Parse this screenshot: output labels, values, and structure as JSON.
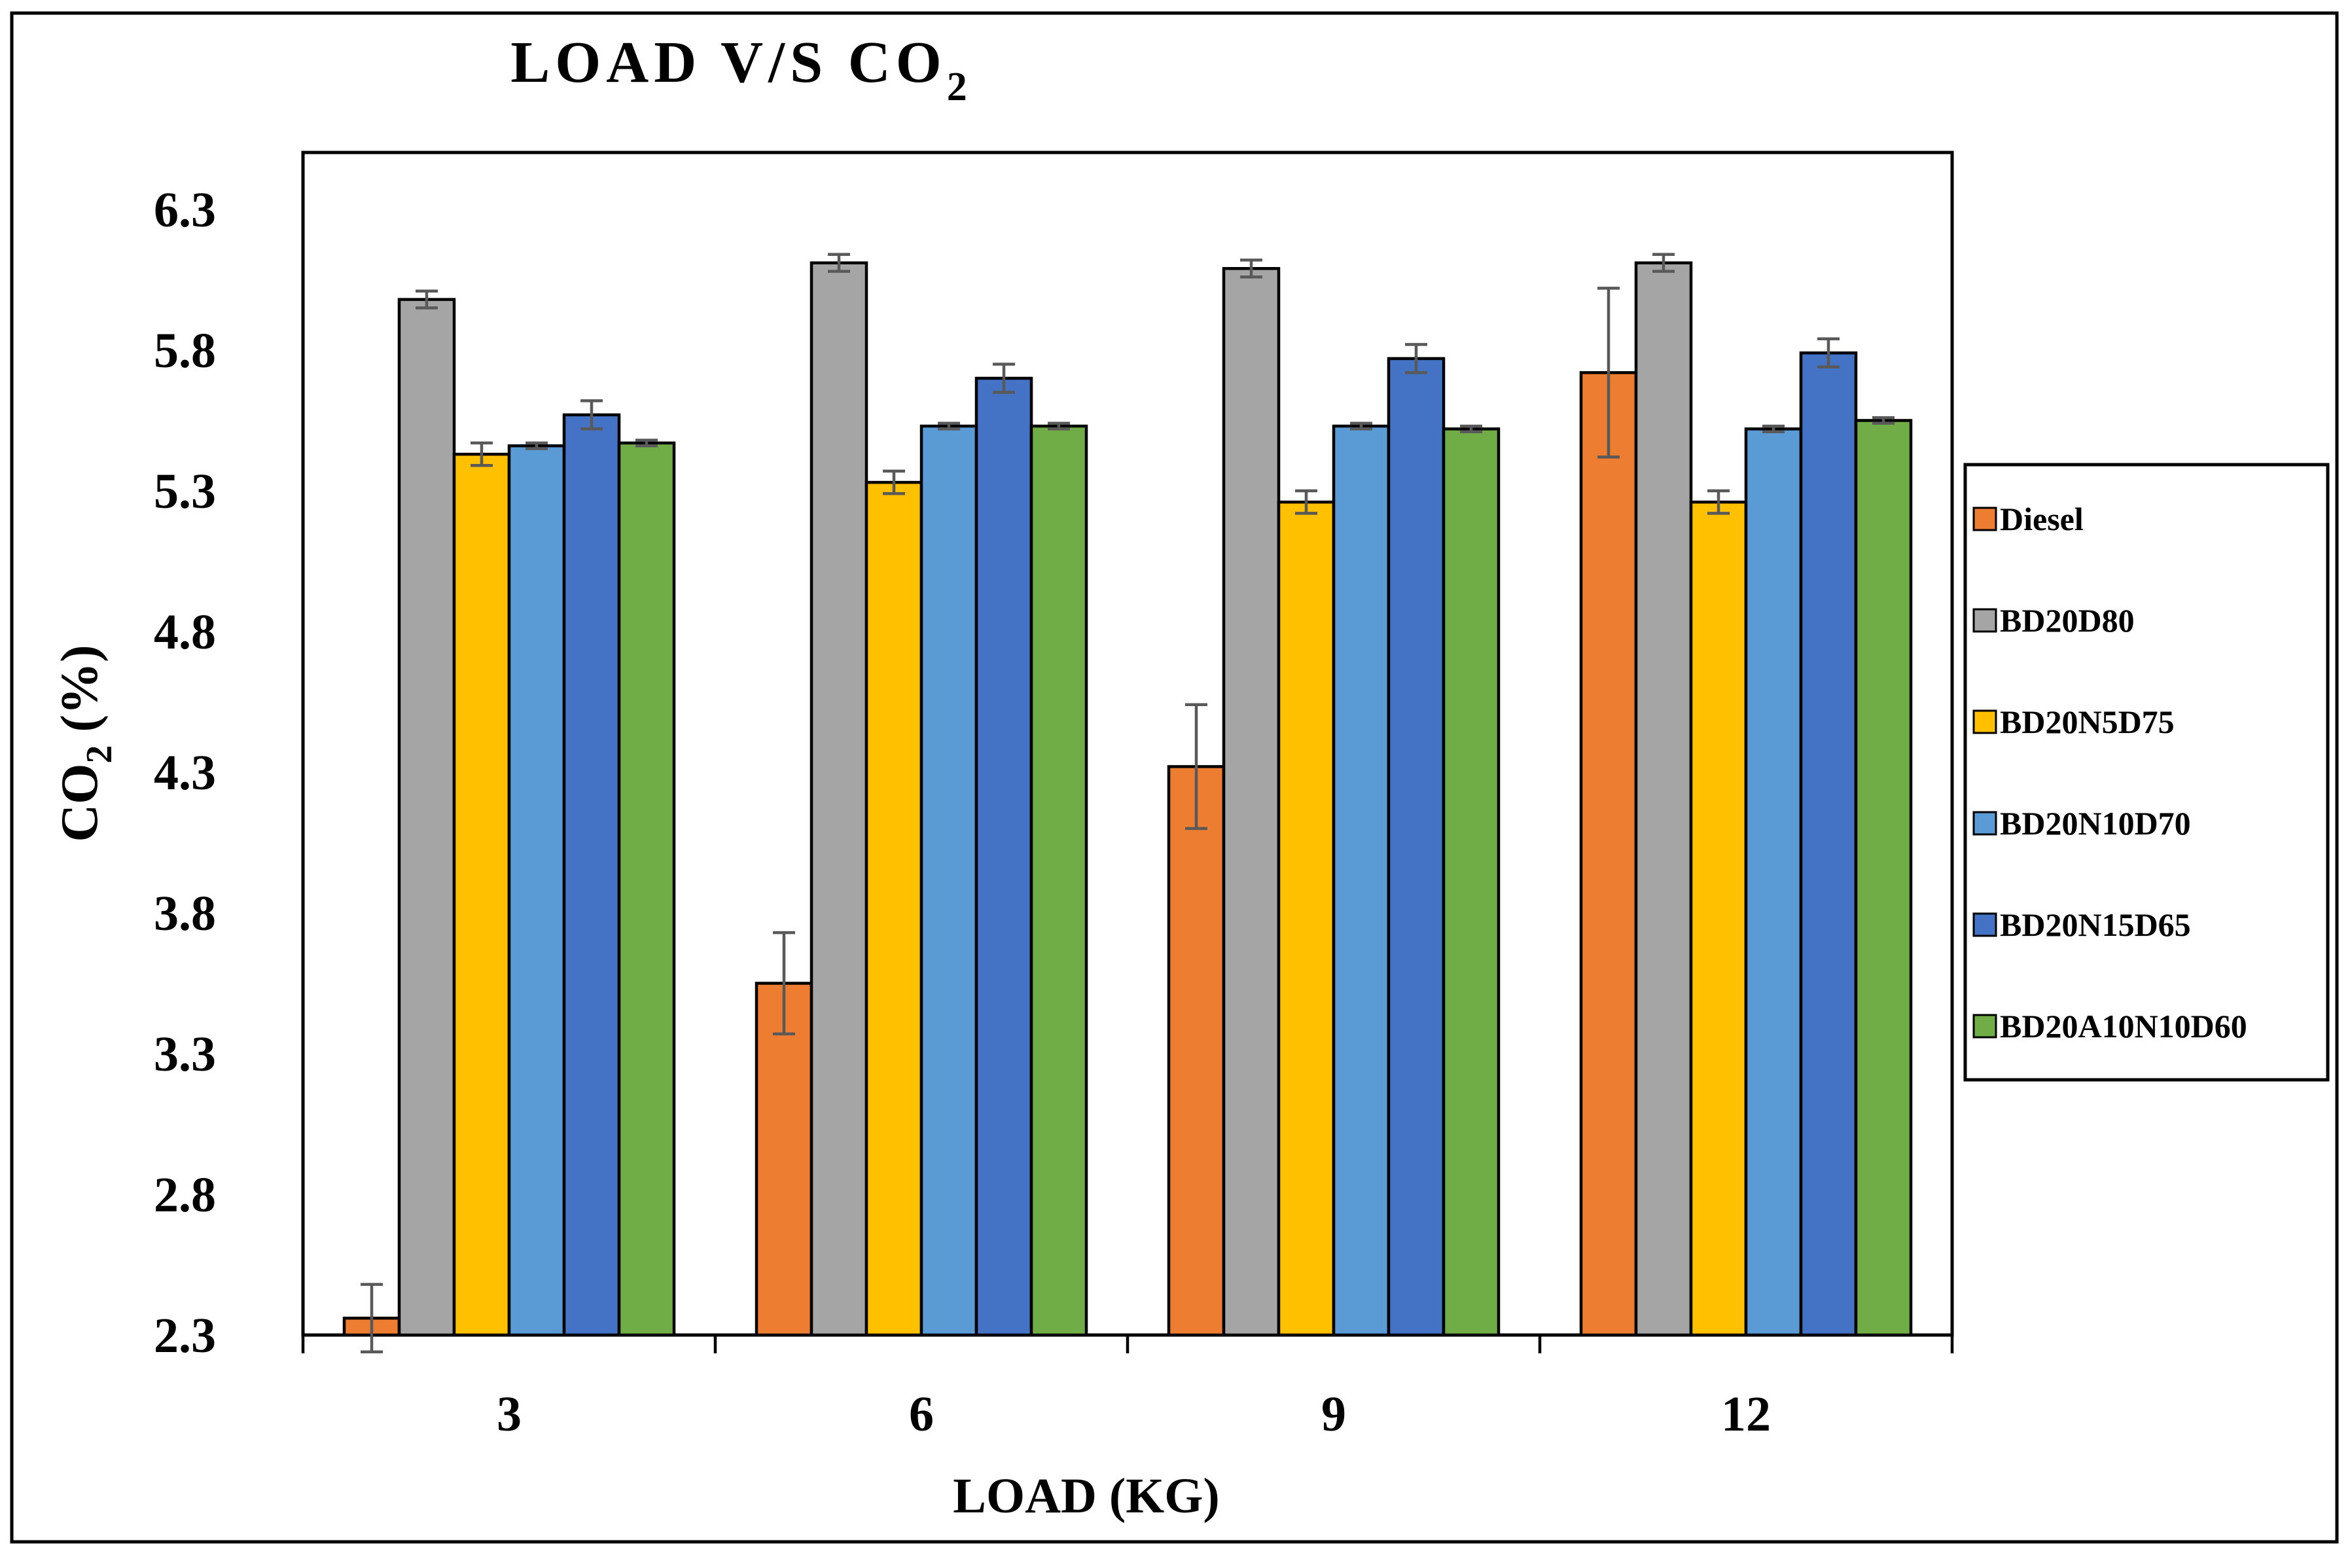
{
  "chart_data": {
    "type": "bar",
    "title": "LOAD V/S CO",
    "title_subscript": "2",
    "xlabel": "LOAD (KG)",
    "ylabel_main": "CO",
    "ylabel_subscript": "2",
    "ylabel_suffix": " (%)",
    "categories": [
      "3",
      "6",
      "9",
      "12"
    ],
    "ylim": [
      2.3,
      6.5
    ],
    "yticks": [
      "2.3",
      "2.8",
      "3.3",
      "3.8",
      "4.3",
      "4.8",
      "5.3",
      "5.8",
      "6.3"
    ],
    "error_bar_color": "#595959",
    "series": [
      {
        "name": "Diesel",
        "color": "#ED7D31",
        "values": [
          2.36,
          3.55,
          4.32,
          5.72
        ],
        "errors": [
          0.12,
          0.18,
          0.22,
          0.3
        ]
      },
      {
        "name": "BD20D80",
        "color": "#A5A5A5",
        "values": [
          5.98,
          6.11,
          6.09,
          6.11
        ],
        "errors": [
          0.03,
          0.03,
          0.03,
          0.03
        ]
      },
      {
        "name": "BD20N5D75",
        "color": "#FFC000",
        "values": [
          5.43,
          5.33,
          5.26,
          5.26
        ],
        "errors": [
          0.04,
          0.04,
          0.04,
          0.04
        ]
      },
      {
        "name": "BD20N10D70",
        "color": "#5B9BD5",
        "values": [
          5.46,
          5.53,
          5.53,
          5.52
        ],
        "errors": [
          0.01,
          0.01,
          0.01,
          0.01
        ]
      },
      {
        "name": "BD20N15D65",
        "color": "#4472C4",
        "values": [
          5.57,
          5.7,
          5.77,
          5.79
        ],
        "errors": [
          0.05,
          0.05,
          0.05,
          0.05
        ]
      },
      {
        "name": "BD20A10N10D60",
        "color": "#70AD47",
        "values": [
          5.47,
          5.53,
          5.52,
          5.55
        ],
        "errors": [
          0.01,
          0.01,
          0.01,
          0.01
        ]
      }
    ]
  }
}
